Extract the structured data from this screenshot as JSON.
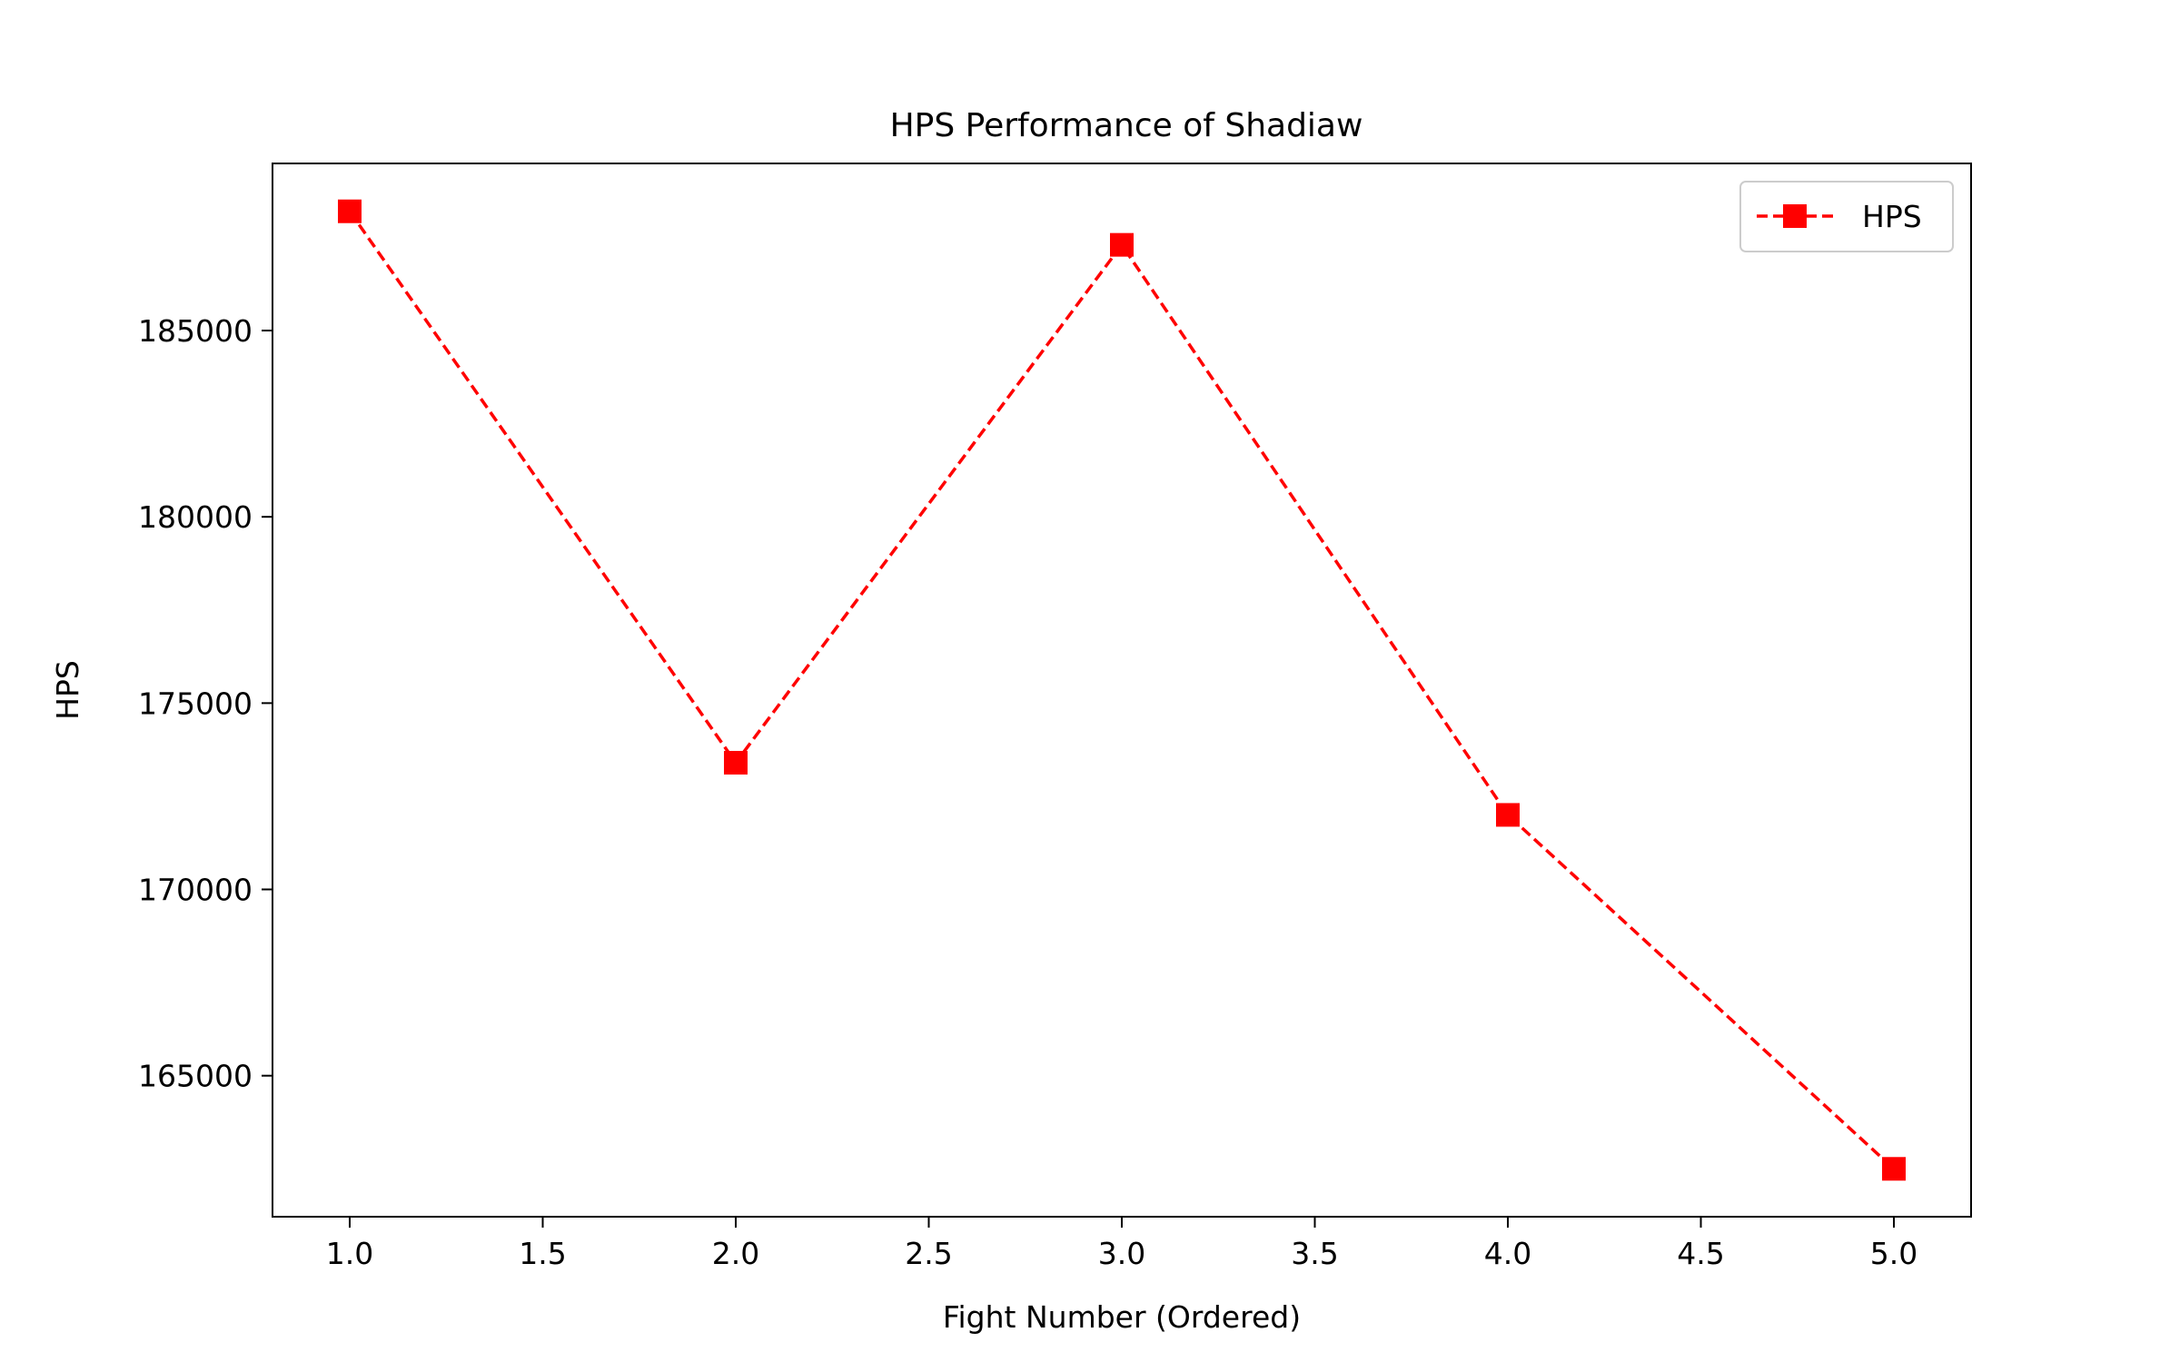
{
  "chart_data": {
    "type": "line",
    "title": "HPS Performance of Shadiaw",
    "xlabel": "Fight Number (Ordered)",
    "ylabel": "HPS",
    "x": [
      1,
      2,
      3,
      4,
      5
    ],
    "series": [
      {
        "name": "HPS",
        "values": [
          188200,
          173400,
          187300,
          172000,
          162500
        ],
        "color": "#ff0000",
        "line_style": "dashed",
        "marker": "square"
      }
    ],
    "x_ticks": [
      "1.0",
      "1.5",
      "2.0",
      "2.5",
      "3.0",
      "3.5",
      "4.0",
      "4.5",
      "5.0"
    ],
    "x_tick_values": [
      1.0,
      1.5,
      2.0,
      2.5,
      3.0,
      3.5,
      4.0,
      4.5,
      5.0
    ],
    "y_ticks": [
      "165000",
      "170000",
      "175000",
      "180000",
      "185000"
    ],
    "y_tick_values": [
      165000,
      170000,
      175000,
      180000,
      185000
    ],
    "xlim": [
      0.8,
      5.2
    ],
    "ylim": [
      161215,
      189485
    ],
    "grid": false,
    "legend_position": "top-right"
  }
}
